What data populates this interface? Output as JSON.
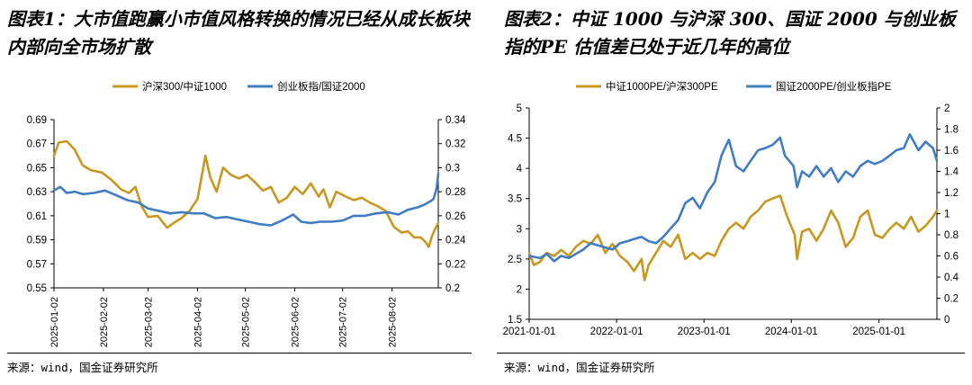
{
  "panels": [
    {
      "title": "图表1：大市值跑赢小市值风格转换的情况已经从成长板块内部向全市场扩散",
      "source": "来源：wind，国金证券研究所"
    },
    {
      "title": "图表2：中证 1000 与沪深 300、国证 2000 与创业板指的PE 估值差已处于近几年的高位",
      "source": "来源：wind，国金证券研究所"
    }
  ],
  "chart_data": [
    {
      "type": "line",
      "title": "",
      "x_ticks": [
        "2025-01-02",
        "2025-02-02",
        "2025-03-02",
        "2025-04-02",
        "2025-05-02",
        "2025-06-02",
        "2025-07-02",
        "2025-08-02"
      ],
      "x_range": [
        "2025-01-02",
        "2025-08-31"
      ],
      "y_left": {
        "ticks": [
          "0.55",
          "0.57",
          "0.59",
          "0.61",
          "0.63",
          "0.65",
          "0.67",
          "0.69"
        ],
        "lim": [
          0.55,
          0.69
        ]
      },
      "y_right": {
        "ticks": [
          "0.2",
          "0.22",
          "0.24",
          "0.26",
          "0.28",
          "0.3",
          "0.32",
          "0.34"
        ],
        "lim": [
          0.2,
          0.34
        ]
      },
      "legend_position": "top",
      "grid": false,
      "series": [
        {
          "name": "沪深300/中证1000",
          "axis": "left",
          "color": "#C8971E",
          "points": [
            [
              "2025-01-02",
              0.66
            ],
            [
              "2025-01-05",
              0.671
            ],
            [
              "2025-01-10",
              0.672
            ],
            [
              "2025-01-15",
              0.665
            ],
            [
              "2025-01-20",
              0.652
            ],
            [
              "2025-01-25",
              0.648
            ],
            [
              "2025-02-01",
              0.646
            ],
            [
              "2025-02-07",
              0.64
            ],
            [
              "2025-02-13",
              0.632
            ],
            [
              "2025-02-18",
              0.629
            ],
            [
              "2025-02-22",
              0.634
            ],
            [
              "2025-02-26",
              0.618
            ],
            [
              "2025-03-02",
              0.609
            ],
            [
              "2025-03-08",
              0.61
            ],
            [
              "2025-03-14",
              0.6
            ],
            [
              "2025-03-18",
              0.604
            ],
            [
              "2025-03-23",
              0.608
            ],
            [
              "2025-03-28",
              0.614
            ],
            [
              "2025-04-02",
              0.624
            ],
            [
              "2025-04-07",
              0.66
            ],
            [
              "2025-04-10",
              0.642
            ],
            [
              "2025-04-14",
              0.63
            ],
            [
              "2025-04-18",
              0.65
            ],
            [
              "2025-04-23",
              0.644
            ],
            [
              "2025-04-28",
              0.641
            ],
            [
              "2025-05-03",
              0.644
            ],
            [
              "2025-05-08",
              0.638
            ],
            [
              "2025-05-13",
              0.631
            ],
            [
              "2025-05-18",
              0.634
            ],
            [
              "2025-05-23",
              0.621
            ],
            [
              "2025-05-28",
              0.625
            ],
            [
              "2025-06-02",
              0.634
            ],
            [
              "2025-06-07",
              0.628
            ],
            [
              "2025-06-12",
              0.637
            ],
            [
              "2025-06-17",
              0.626
            ],
            [
              "2025-06-20",
              0.632
            ],
            [
              "2025-06-24",
              0.617
            ],
            [
              "2025-06-28",
              0.63
            ],
            [
              "2025-07-04",
              0.626
            ],
            [
              "2025-07-09",
              0.623
            ],
            [
              "2025-07-14",
              0.625
            ],
            [
              "2025-07-19",
              0.621
            ],
            [
              "2025-07-24",
              0.618
            ],
            [
              "2025-07-29",
              0.614
            ],
            [
              "2025-08-03",
              0.601
            ],
            [
              "2025-08-08",
              0.596
            ],
            [
              "2025-08-12",
              0.597
            ],
            [
              "2025-08-16",
              0.592
            ],
            [
              "2025-08-20",
              0.592
            ],
            [
              "2025-08-23",
              0.588
            ],
            [
              "2025-08-25",
              0.584
            ],
            [
              "2025-08-27",
              0.593
            ],
            [
              "2025-08-29",
              0.599
            ],
            [
              "2025-08-31",
              0.604
            ]
          ]
        },
        {
          "name": "创业板指/国证2000",
          "axis": "right",
          "color": "#3F7CC1",
          "points": [
            [
              "2025-01-02",
              0.281
            ],
            [
              "2025-01-06",
              0.284
            ],
            [
              "2025-01-10",
              0.279
            ],
            [
              "2025-01-15",
              0.28
            ],
            [
              "2025-01-20",
              0.278
            ],
            [
              "2025-01-27",
              0.279
            ],
            [
              "2025-02-03",
              0.281
            ],
            [
              "2025-02-10",
              0.277
            ],
            [
              "2025-02-17",
              0.273
            ],
            [
              "2025-02-24",
              0.271
            ],
            [
              "2025-03-02",
              0.266
            ],
            [
              "2025-03-09",
              0.264
            ],
            [
              "2025-03-16",
              0.262
            ],
            [
              "2025-03-23",
              0.263
            ],
            [
              "2025-03-30",
              0.262
            ],
            [
              "2025-04-06",
              0.262
            ],
            [
              "2025-04-13",
              0.258
            ],
            [
              "2025-04-20",
              0.259
            ],
            [
              "2025-04-27",
              0.257
            ],
            [
              "2025-05-04",
              0.255
            ],
            [
              "2025-05-11",
              0.253
            ],
            [
              "2025-05-18",
              0.252
            ],
            [
              "2025-05-25",
              0.256
            ],
            [
              "2025-06-01",
              0.261
            ],
            [
              "2025-06-06",
              0.255
            ],
            [
              "2025-06-12",
              0.254
            ],
            [
              "2025-06-18",
              0.255
            ],
            [
              "2025-06-25",
              0.255
            ],
            [
              "2025-07-02",
              0.256
            ],
            [
              "2025-07-09",
              0.26
            ],
            [
              "2025-07-16",
              0.26
            ],
            [
              "2025-07-23",
              0.262
            ],
            [
              "2025-07-30",
              0.263
            ],
            [
              "2025-08-06",
              0.261
            ],
            [
              "2025-08-12",
              0.265
            ],
            [
              "2025-08-18",
              0.267
            ],
            [
              "2025-08-22",
              0.269
            ],
            [
              "2025-08-26",
              0.272
            ],
            [
              "2025-08-28",
              0.274
            ],
            [
              "2025-08-30",
              0.283
            ],
            [
              "2025-08-31",
              0.295
            ]
          ]
        }
      ]
    },
    {
      "type": "line",
      "title": "",
      "x_ticks": [
        "2021-01-01",
        "2022-01-01",
        "2023-01-01",
        "2024-01-01",
        "2025-01-01"
      ],
      "x_range": [
        "2021-01-01",
        "2025-08-31"
      ],
      "y_left": {
        "ticks": [
          "1.5",
          "2",
          "2.5",
          "3",
          "3.5",
          "4",
          "4.5",
          "5"
        ],
        "lim": [
          1.5,
          5
        ]
      },
      "y_right": {
        "ticks": [
          "0",
          "0.2",
          "0.4",
          "0.6",
          "0.8",
          "1",
          "1.2",
          "1.4",
          "1.6",
          "1.8",
          "2"
        ],
        "lim": [
          0,
          2
        ]
      },
      "legend_position": "top",
      "grid": false,
      "series": [
        {
          "name": "中证1000PE/沪深300PE",
          "axis": "left",
          "color": "#C8971E",
          "points": [
            [
              "2021-01-01",
              2.6
            ],
            [
              "2021-01-20",
              2.4
            ],
            [
              "2021-02-15",
              2.45
            ],
            [
              "2021-03-15",
              2.6
            ],
            [
              "2021-04-15",
              2.55
            ],
            [
              "2021-05-15",
              2.65
            ],
            [
              "2021-06-15",
              2.55
            ],
            [
              "2021-07-15",
              2.7
            ],
            [
              "2021-08-15",
              2.8
            ],
            [
              "2021-09-15",
              2.75
            ],
            [
              "2021-10-15",
              2.9
            ],
            [
              "2021-11-15",
              2.6
            ],
            [
              "2021-12-15",
              2.75
            ],
            [
              "2022-01-15",
              2.55
            ],
            [
              "2022-02-15",
              2.45
            ],
            [
              "2022-03-15",
              2.3
            ],
            [
              "2022-04-15",
              2.5
            ],
            [
              "2022-04-28",
              2.15
            ],
            [
              "2022-05-15",
              2.4
            ],
            [
              "2022-06-15",
              2.6
            ],
            [
              "2022-07-15",
              2.8
            ],
            [
              "2022-08-15",
              2.7
            ],
            [
              "2022-09-15",
              2.9
            ],
            [
              "2022-10-15",
              2.5
            ],
            [
              "2022-11-15",
              2.6
            ],
            [
              "2022-12-15",
              2.5
            ],
            [
              "2023-01-15",
              2.6
            ],
            [
              "2023-02-15",
              2.55
            ],
            [
              "2023-03-15",
              2.8
            ],
            [
              "2023-04-15",
              3.0
            ],
            [
              "2023-05-15",
              3.1
            ],
            [
              "2023-06-15",
              3.0
            ],
            [
              "2023-07-15",
              3.2
            ],
            [
              "2023-08-15",
              3.3
            ],
            [
              "2023-09-15",
              3.45
            ],
            [
              "2023-10-15",
              3.5
            ],
            [
              "2023-11-15",
              3.55
            ],
            [
              "2023-12-15",
              3.2
            ],
            [
              "2024-01-15",
              2.9
            ],
            [
              "2024-01-25",
              2.5
            ],
            [
              "2024-02-15",
              2.95
            ],
            [
              "2024-03-15",
              3.0
            ],
            [
              "2024-04-15",
              2.8
            ],
            [
              "2024-05-15",
              3.0
            ],
            [
              "2024-06-15",
              3.3
            ],
            [
              "2024-07-15",
              3.1
            ],
            [
              "2024-08-15",
              2.7
            ],
            [
              "2024-09-15",
              2.85
            ],
            [
              "2024-10-15",
              3.2
            ],
            [
              "2024-11-15",
              3.3
            ],
            [
              "2024-12-15",
              2.9
            ],
            [
              "2025-01-15",
              2.85
            ],
            [
              "2025-02-15",
              3.0
            ],
            [
              "2025-03-15",
              3.1
            ],
            [
              "2025-04-15",
              3.0
            ],
            [
              "2025-05-15",
              3.2
            ],
            [
              "2025-06-15",
              2.95
            ],
            [
              "2025-07-15",
              3.05
            ],
            [
              "2025-08-15",
              3.2
            ],
            [
              "2025-08-31",
              3.3
            ]
          ]
        },
        {
          "name": "国证2000PE/创业板指PE",
          "axis": "right",
          "color": "#3F7CC1",
          "points": [
            [
              "2021-01-01",
              0.6
            ],
            [
              "2021-02-15",
              0.58
            ],
            [
              "2021-03-15",
              0.62
            ],
            [
              "2021-04-15",
              0.55
            ],
            [
              "2021-05-15",
              0.6
            ],
            [
              "2021-06-15",
              0.58
            ],
            [
              "2021-07-15",
              0.62
            ],
            [
              "2021-08-15",
              0.66
            ],
            [
              "2021-09-15",
              0.72
            ],
            [
              "2021-10-15",
              0.7
            ],
            [
              "2021-11-15",
              0.68
            ],
            [
              "2021-12-15",
              0.66
            ],
            [
              "2022-01-15",
              0.72
            ],
            [
              "2022-02-15",
              0.74
            ],
            [
              "2022-03-15",
              0.76
            ],
            [
              "2022-04-15",
              0.78
            ],
            [
              "2022-05-15",
              0.74
            ],
            [
              "2022-06-15",
              0.72
            ],
            [
              "2022-07-15",
              0.78
            ],
            [
              "2022-08-15",
              0.86
            ],
            [
              "2022-09-15",
              0.94
            ],
            [
              "2022-10-15",
              1.1
            ],
            [
              "2022-11-15",
              1.15
            ],
            [
              "2022-12-15",
              1.05
            ],
            [
              "2023-01-15",
              1.2
            ],
            [
              "2023-02-15",
              1.3
            ],
            [
              "2023-03-15",
              1.55
            ],
            [
              "2023-04-15",
              1.7
            ],
            [
              "2023-05-15",
              1.45
            ],
            [
              "2023-06-15",
              1.4
            ],
            [
              "2023-07-15",
              1.5
            ],
            [
              "2023-08-15",
              1.6
            ],
            [
              "2023-09-15",
              1.62
            ],
            [
              "2023-10-15",
              1.65
            ],
            [
              "2023-11-15",
              1.72
            ],
            [
              "2023-12-05",
              1.55
            ],
            [
              "2024-01-10",
              1.45
            ],
            [
              "2024-01-25",
              1.25
            ],
            [
              "2024-02-15",
              1.4
            ],
            [
              "2024-03-15",
              1.35
            ],
            [
              "2024-04-15",
              1.45
            ],
            [
              "2024-05-15",
              1.35
            ],
            [
              "2024-06-15",
              1.43
            ],
            [
              "2024-07-15",
              1.3
            ],
            [
              "2024-08-15",
              1.4
            ],
            [
              "2024-09-15",
              1.35
            ],
            [
              "2024-10-15",
              1.45
            ],
            [
              "2024-11-15",
              1.5
            ],
            [
              "2024-12-15",
              1.47
            ],
            [
              "2025-01-15",
              1.5
            ],
            [
              "2025-02-15",
              1.55
            ],
            [
              "2025-03-15",
              1.6
            ],
            [
              "2025-04-15",
              1.62
            ],
            [
              "2025-05-10",
              1.75
            ],
            [
              "2025-06-15",
              1.6
            ],
            [
              "2025-07-15",
              1.68
            ],
            [
              "2025-08-15",
              1.62
            ],
            [
              "2025-08-31",
              1.5
            ]
          ]
        }
      ]
    }
  ]
}
